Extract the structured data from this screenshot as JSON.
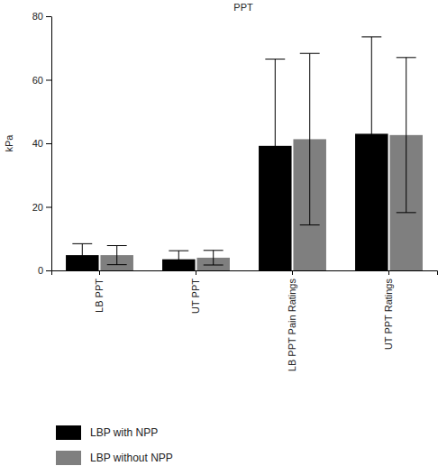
{
  "chart_data": {
    "type": "bar",
    "title": "PPT",
    "y_label": "kPa",
    "categories": [
      "LB PPT",
      "UT PPT",
      "LB PPT Pain Ratings",
      "UT PPT Ratings"
    ],
    "series": [
      {
        "name": "LBP with NPP",
        "color": "#000000",
        "values": [
          4.8,
          3.5,
          39.2,
          43.0
        ],
        "errors": [
          3.6,
          2.7,
          27.3,
          30.5
        ]
      },
      {
        "name": "LBP without NPP",
        "color": "#7f7f7f",
        "values": [
          4.8,
          4.0,
          41.3,
          42.6
        ],
        "errors": [
          3.0,
          2.3,
          27.0,
          24.4
        ]
      }
    ],
    "ylim": [
      0,
      80
    ],
    "yticks": [
      0,
      20,
      40,
      60,
      80
    ],
    "grid": false,
    "legend": "bottom-left"
  }
}
